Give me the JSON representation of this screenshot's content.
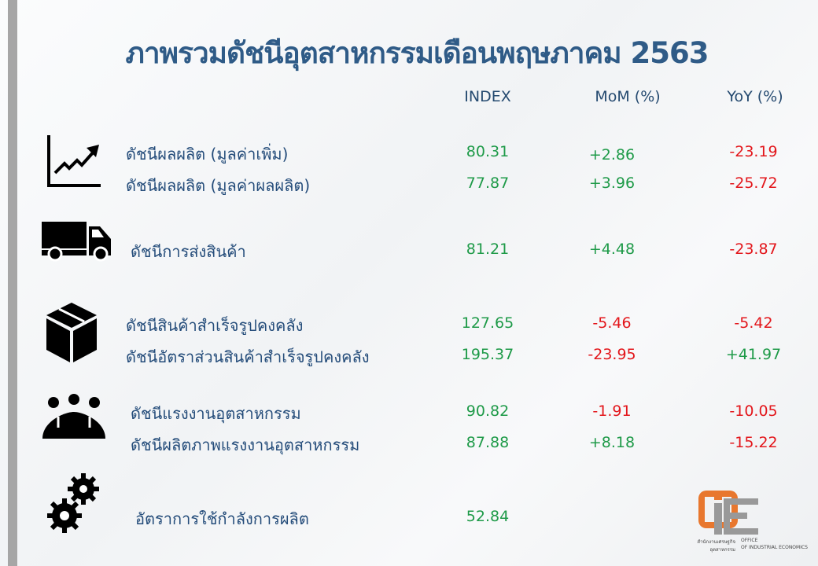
{
  "title": "ภาพรวมดัชนีอุตสาหกรรมเดือนพฤษภาคม 2563",
  "headers": {
    "index": "INDEX",
    "mom": "MoM (%)",
    "yoy": "YoY (%)"
  },
  "colors": {
    "title": "#2f5b87",
    "label": "#244c7a",
    "positive": "#1e9a48",
    "negative": "#e3161b"
  },
  "groups": [
    {
      "icon": "trend-chart-icon",
      "rows": [
        {
          "label": "ดัชนีผลผลิต (มูลค่าเพิ่ม)",
          "index": "80.31",
          "mom": "+2.86",
          "yoy": "-23.19"
        },
        {
          "label": "ดัชนีผลผลิต (มูลค่าผลผลิต)",
          "index": "77.87",
          "mom": "+3.96",
          "yoy": "-25.72"
        }
      ]
    },
    {
      "icon": "truck-icon",
      "rows": [
        {
          "label": "ดัชนีการส่งสินค้า",
          "index": "81.21",
          "mom": "+4.48",
          "yoy": "-23.87"
        }
      ]
    },
    {
      "icon": "box-icon",
      "rows": [
        {
          "label": "ดัชนีสินค้าสำเร็จรูปคงคลัง",
          "index": "127.65",
          "mom": "-5.46",
          "yoy": "-5.42"
        },
        {
          "label": "ดัชนีอัตราส่วนสินค้าสำเร็จรูปคงคลัง",
          "index": "195.37",
          "mom": "-23.95",
          "yoy": "+41.97"
        }
      ]
    },
    {
      "icon": "people-icon",
      "rows": [
        {
          "label": "ดัชนีแรงงานอุตสาหกรรม",
          "index": "90.82",
          "mom": "-1.91",
          "yoy": "-10.05"
        },
        {
          "label": "ดัชนีผลิตภาพแรงงานอุตสาหกรรม",
          "index": "87.88",
          "mom": "+8.18",
          "yoy": "-15.22"
        }
      ]
    },
    {
      "icon": "gears-icon",
      "rows": [
        {
          "label": "อัตราการใช้กำลังการผลิต",
          "index": "52.84"
        }
      ]
    }
  ],
  "logo": {
    "mark": "OIE",
    "thai": "สำนักงานเศรษฐกิจอุตสาหกรรม",
    "en1": "OFFICE",
    "en2": "OF INDUSTRIAL ECONOMICS"
  }
}
